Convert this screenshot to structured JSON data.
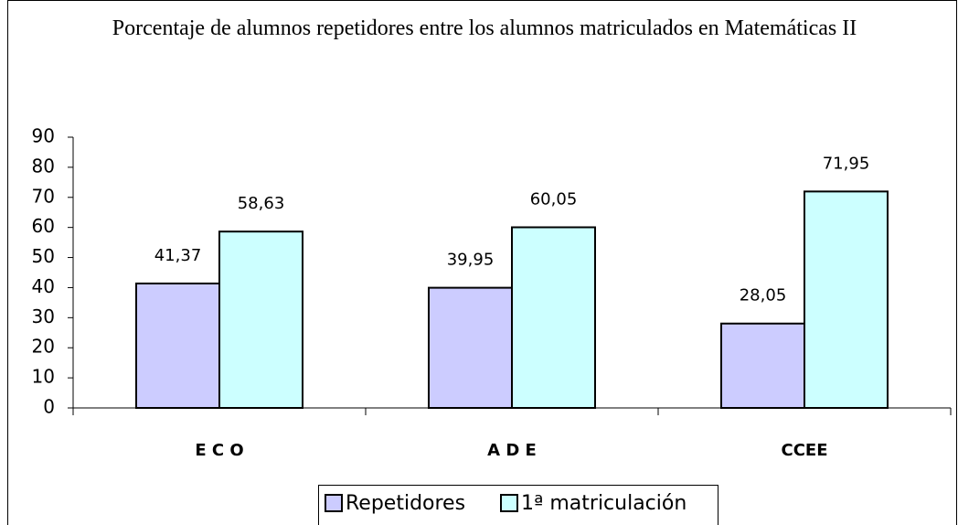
{
  "chart_data": {
    "type": "bar",
    "title": "Porcentaje de alumnos repetidores entre los alumnos matriculados en Matemáticas II",
    "categories": [
      "E C O",
      "A D E",
      "CCEE"
    ],
    "series": [
      {
        "name": "Repetidores",
        "color": "#ccccff",
        "values": [
          41.37,
          39.95,
          28.05
        ],
        "value_labels": [
          "41,37",
          "39,95",
          "28,05"
        ]
      },
      {
        "name": "1ª matriculación",
        "color": "#ccffff",
        "values": [
          58.63,
          60.05,
          71.95
        ],
        "value_labels": [
          "58,63",
          "60,05",
          "71,95"
        ]
      }
    ],
    "ylim": [
      0,
      90
    ],
    "yticks": [
      0,
      10,
      20,
      30,
      40,
      50,
      60,
      70,
      80,
      90
    ],
    "legend": "bottom"
  }
}
